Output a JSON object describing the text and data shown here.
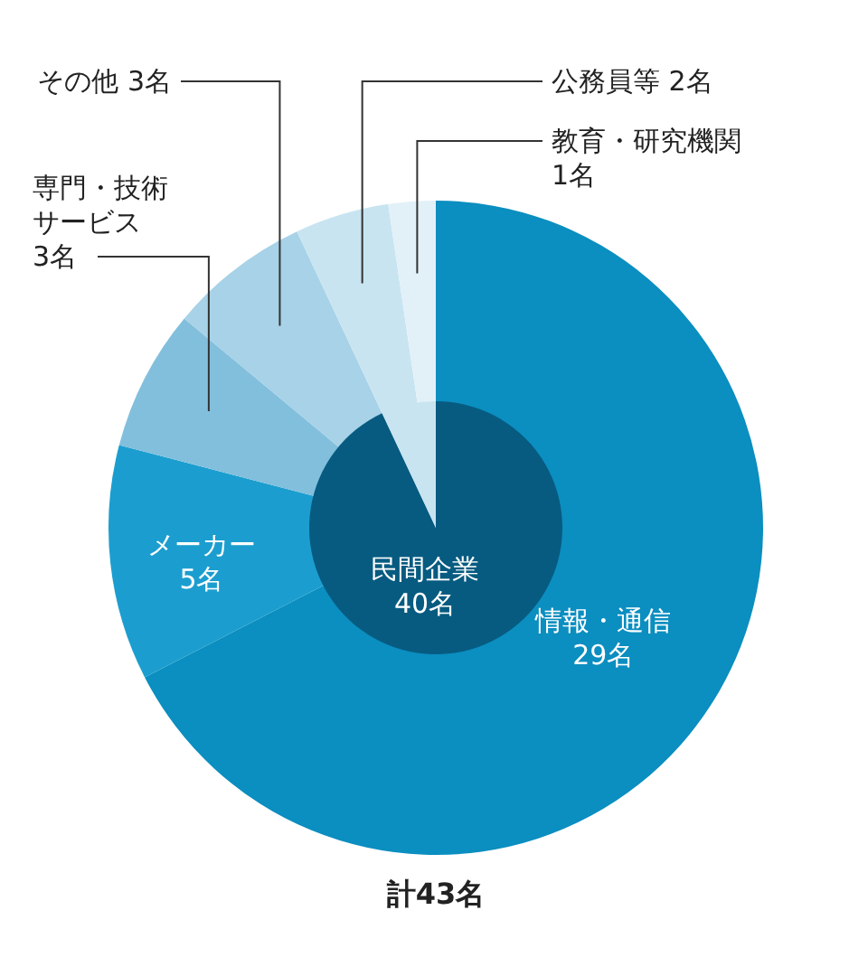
{
  "chart_data": [
    {
      "type": "pie",
      "categories": [
        "情報・通信",
        "メーカー",
        "専門・技術サービス",
        "その他",
        "公務員等",
        "教育・研究機関"
      ],
      "values": [
        29,
        5,
        3,
        3,
        2,
        1
      ],
      "colors": [
        "#0b8ec0",
        "#1b9ecf",
        "#82bfdc",
        "#a7d2e7",
        "#c8e4f1",
        "#e2f1f8"
      ],
      "value_labels": [
        "29名",
        "5名",
        "3名",
        "3名",
        "2名",
        "1名"
      ],
      "annotations": [
        "計43名"
      ]
    },
    {
      "type": "pie",
      "categories": [
        "民間企業",
        null
      ],
      "values": [
        40,
        3
      ],
      "colors": [
        "#075b80",
        "#c8e4f1"
      ],
      "value_labels": [
        "40名",
        null
      ]
    }
  ]
}
